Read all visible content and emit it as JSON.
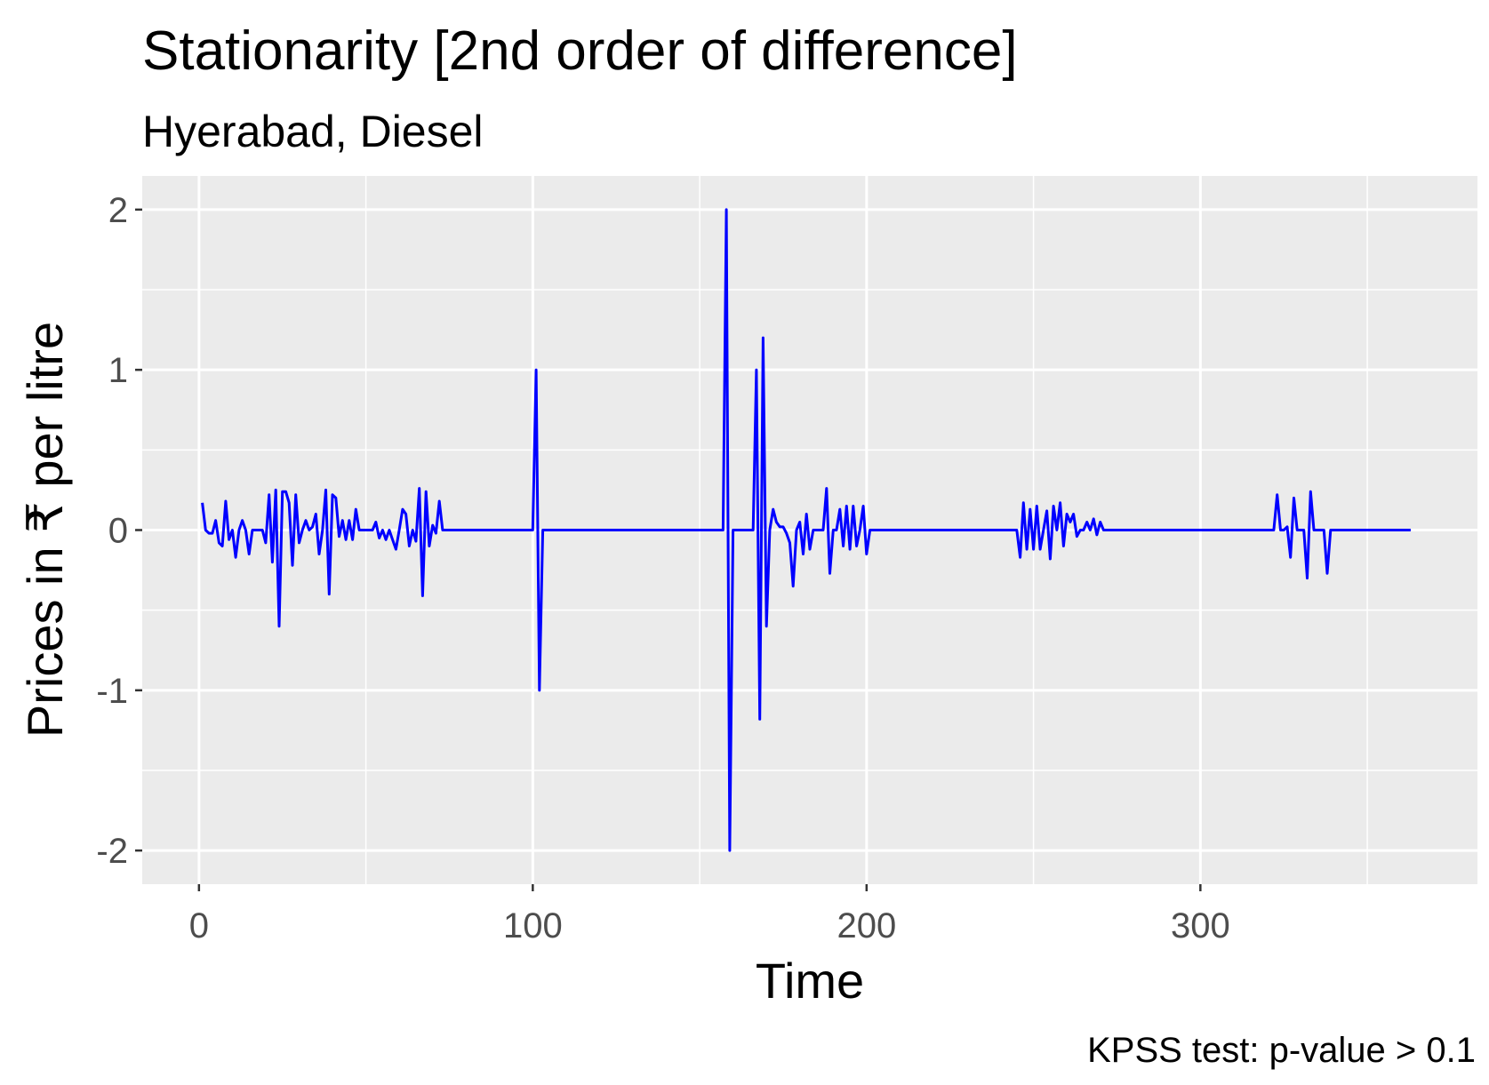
{
  "chart_data": {
    "type": "line",
    "title": "Stationarity [2nd order of difference]",
    "subtitle": "Hyerabad, Diesel",
    "xlabel": "Time",
    "ylabel": "Prices in ₹ per litre",
    "caption": "KPSS test: p-value > 0.1",
    "xlim": [
      -17,
      383
    ],
    "ylim": [
      -2.21,
      2.21
    ],
    "x_ticks": [
      0,
      100,
      200,
      300
    ],
    "x_tick_labels": [
      "0",
      "100",
      "200",
      "300"
    ],
    "y_ticks": [
      -2,
      -1,
      0,
      1,
      2
    ],
    "y_tick_labels": [
      "-2",
      "-1",
      "0",
      "1",
      "2"
    ],
    "grid": true,
    "legend": "none",
    "colors": {
      "line": "#0000ff",
      "panel": "#ebebeb",
      "grid": "#ffffff"
    },
    "series": [
      {
        "points": [
          [
            1,
            0.17
          ],
          [
            2,
            0.0
          ],
          [
            3,
            -0.02
          ],
          [
            4,
            -0.02
          ],
          [
            5,
            0.06
          ],
          [
            6,
            -0.08
          ],
          [
            7,
            -0.1
          ],
          [
            8,
            0.18
          ],
          [
            9,
            -0.06
          ],
          [
            10,
            0.0
          ],
          [
            11,
            -0.17
          ],
          [
            12,
            0.0
          ],
          [
            13,
            0.06
          ],
          [
            14,
            0.0
          ],
          [
            15,
            -0.15
          ],
          [
            16,
            0.0
          ],
          [
            17,
            0.0
          ],
          [
            18,
            0.0
          ],
          [
            19,
            0.0
          ],
          [
            20,
            -0.08
          ],
          [
            21,
            0.22
          ],
          [
            22,
            -0.2
          ],
          [
            23,
            0.25
          ],
          [
            24,
            -0.6
          ],
          [
            25,
            0.24
          ],
          [
            26,
            0.24
          ],
          [
            27,
            0.17
          ],
          [
            28,
            -0.22
          ],
          [
            29,
            0.22
          ],
          [
            30,
            -0.08
          ],
          [
            31,
            0.0
          ],
          [
            32,
            0.06
          ],
          [
            33,
            0.0
          ],
          [
            34,
            0.02
          ],
          [
            35,
            0.1
          ],
          [
            36,
            -0.15
          ],
          [
            37,
            0.0
          ],
          [
            38,
            0.25
          ],
          [
            39,
            -0.4
          ],
          [
            40,
            0.22
          ],
          [
            41,
            0.2
          ],
          [
            42,
            -0.04
          ],
          [
            43,
            0.06
          ],
          [
            44,
            -0.06
          ],
          [
            45,
            0.06
          ],
          [
            46,
            -0.06
          ],
          [
            47,
            0.13
          ],
          [
            48,
            0.0
          ],
          [
            49,
            0.0
          ],
          [
            50,
            0.0
          ],
          [
            51,
            0.0
          ],
          [
            52,
            0.0
          ],
          [
            53,
            0.05
          ],
          [
            54,
            -0.05
          ],
          [
            55,
            0.0
          ],
          [
            56,
            -0.06
          ],
          [
            57,
            0.0
          ],
          [
            58,
            -0.06
          ],
          [
            59,
            -0.12
          ],
          [
            60,
            0.0
          ],
          [
            61,
            0.13
          ],
          [
            62,
            0.1
          ],
          [
            63,
            -0.1
          ],
          [
            64,
            0.0
          ],
          [
            65,
            -0.07
          ],
          [
            66,
            0.26
          ],
          [
            67,
            -0.41
          ],
          [
            68,
            0.24
          ],
          [
            69,
            -0.1
          ],
          [
            70,
            0.03
          ],
          [
            71,
            -0.02
          ],
          [
            72,
            0.18
          ],
          [
            73,
            0.0
          ],
          [
            100,
            0.0
          ],
          [
            101,
            1.0
          ],
          [
            102,
            -1.0
          ],
          [
            103,
            0.0
          ],
          [
            157,
            0.0
          ],
          [
            158,
            2.0
          ],
          [
            159,
            -2.0
          ],
          [
            160,
            0.0
          ],
          [
            166,
            0.0
          ],
          [
            167,
            1.0
          ],
          [
            168,
            -1.18
          ],
          [
            169,
            1.2
          ],
          [
            170,
            -0.6
          ],
          [
            171,
            0.0
          ],
          [
            172,
            0.13
          ],
          [
            173,
            0.05
          ],
          [
            174,
            0.02
          ],
          [
            175,
            0.02
          ],
          [
            176,
            -0.02
          ],
          [
            177,
            -0.08
          ],
          [
            178,
            -0.35
          ],
          [
            179,
            0.0
          ],
          [
            180,
            0.05
          ],
          [
            181,
            -0.15
          ],
          [
            182,
            0.1
          ],
          [
            183,
            -0.12
          ],
          [
            184,
            0.0
          ],
          [
            185,
            0.0
          ],
          [
            186,
            0.0
          ],
          [
            187,
            0.0
          ],
          [
            188,
            0.26
          ],
          [
            189,
            -0.27
          ],
          [
            190,
            0.0
          ],
          [
            191,
            0.0
          ],
          [
            192,
            0.13
          ],
          [
            193,
            -0.1
          ],
          [
            194,
            0.15
          ],
          [
            195,
            -0.12
          ],
          [
            196,
            0.15
          ],
          [
            197,
            -0.1
          ],
          [
            198,
            0.0
          ],
          [
            199,
            0.15
          ],
          [
            200,
            -0.15
          ],
          [
            201,
            0.0
          ],
          [
            245,
            0.0
          ],
          [
            246,
            -0.17
          ],
          [
            247,
            0.17
          ],
          [
            248,
            -0.12
          ],
          [
            249,
            0.13
          ],
          [
            250,
            -0.12
          ],
          [
            251,
            0.15
          ],
          [
            252,
            -0.12
          ],
          [
            253,
            0.0
          ],
          [
            254,
            0.12
          ],
          [
            255,
            -0.18
          ],
          [
            256,
            0.15
          ],
          [
            257,
            0.0
          ],
          [
            258,
            0.17
          ],
          [
            259,
            -0.1
          ],
          [
            260,
            0.1
          ],
          [
            261,
            0.05
          ],
          [
            262,
            0.1
          ],
          [
            263,
            -0.04
          ],
          [
            264,
            0.0
          ],
          [
            265,
            0.0
          ],
          [
            266,
            0.05
          ],
          [
            267,
            0.0
          ],
          [
            268,
            0.07
          ],
          [
            269,
            -0.03
          ],
          [
            270,
            0.05
          ],
          [
            271,
            0.0
          ],
          [
            272,
            0.0
          ],
          [
            322,
            0.0
          ],
          [
            323,
            0.22
          ],
          [
            324,
            0.0
          ],
          [
            325,
            0.0
          ],
          [
            326,
            0.02
          ],
          [
            327,
            -0.17
          ],
          [
            328,
            0.2
          ],
          [
            329,
            0.0
          ],
          [
            330,
            0.0
          ],
          [
            331,
            0.0
          ],
          [
            332,
            -0.3
          ],
          [
            333,
            0.24
          ],
          [
            334,
            0.0
          ],
          [
            335,
            0.0
          ],
          [
            336,
            0.0
          ],
          [
            337,
            0.0
          ],
          [
            338,
            -0.27
          ],
          [
            339,
            0.0
          ],
          [
            340,
            0.0
          ],
          [
            363,
            0.0
          ]
        ]
      }
    ]
  }
}
